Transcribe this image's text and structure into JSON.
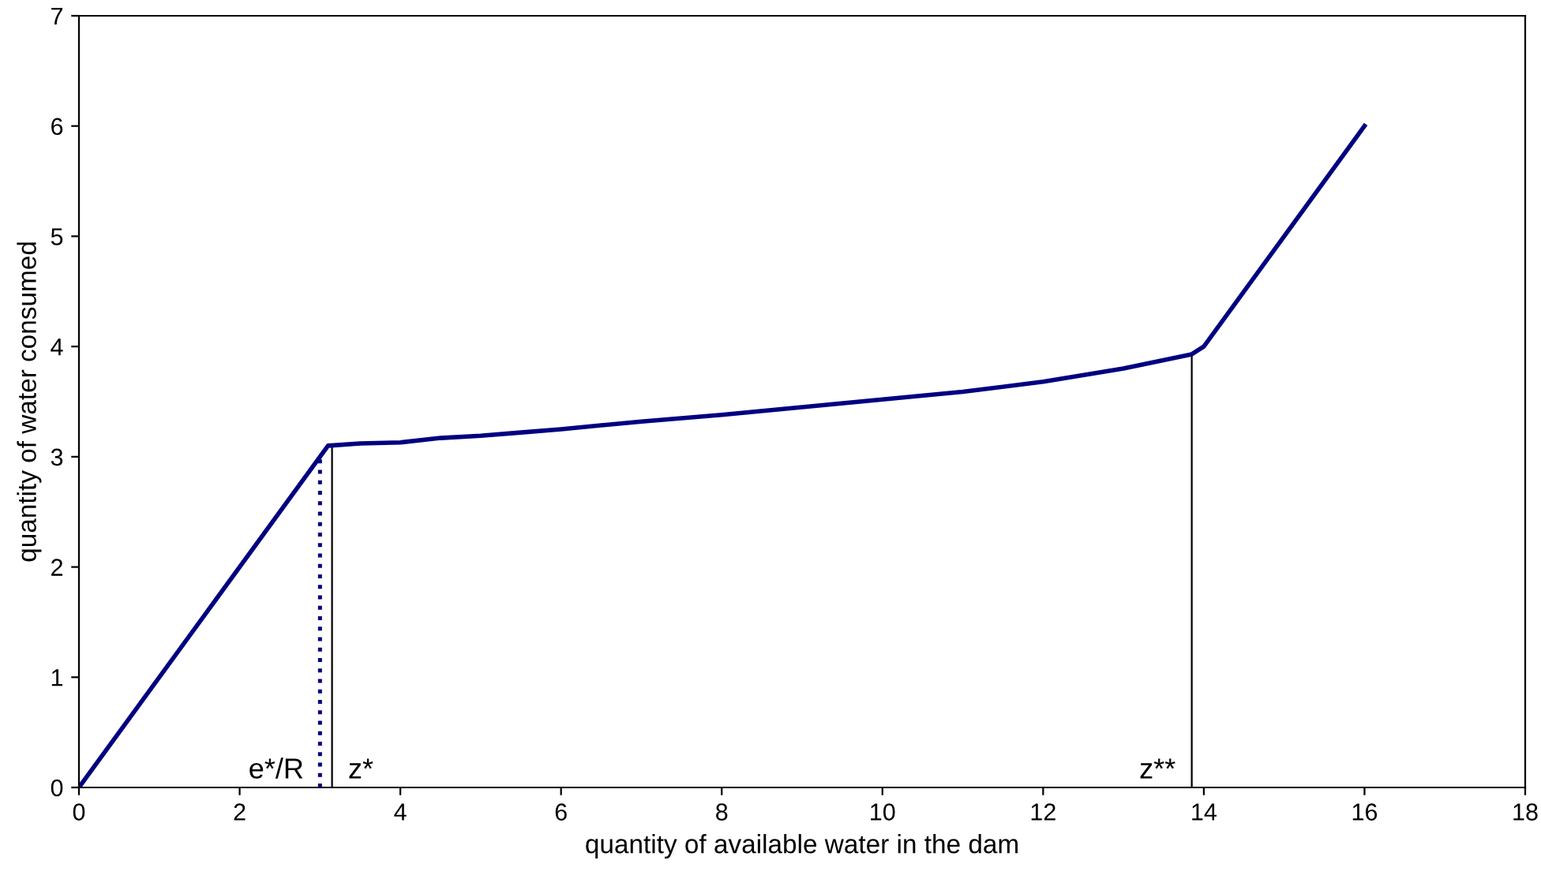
{
  "chart_data": {
    "type": "line",
    "xlabel": "quantity of available water in the dam",
    "ylabel": "quantity of water consumed",
    "x": [
      0,
      3.1,
      3.5,
      4,
      4.5,
      5,
      5.5,
      6,
      7,
      8,
      9,
      10,
      11,
      12,
      13,
      13.85,
      14,
      16
    ],
    "series": [
      {
        "color": "#000080",
        "values": [
          0,
          3.1,
          3.12,
          3.13,
          3.17,
          3.19,
          3.22,
          3.25,
          3.32,
          3.38,
          3.45,
          3.52,
          3.59,
          3.68,
          3.8,
          3.93,
          4.0,
          6.0
        ]
      }
    ],
    "xlim": [
      0,
      18
    ],
    "xticks": [
      0,
      2,
      4,
      6,
      8,
      10,
      12,
      14,
      16,
      18
    ],
    "ylim": [
      0,
      7
    ],
    "yticks": [
      0,
      1,
      2,
      3,
      4,
      5,
      6,
      7
    ],
    "ref_lines": [
      {
        "axis": "x",
        "value": 3.0,
        "label": "e*/R",
        "color": "#000080",
        "line_style": "dotted"
      },
      {
        "axis": "x",
        "value": 3.15,
        "label": "z*",
        "color": "#000000",
        "line_style": "solid"
      },
      {
        "axis": "x",
        "value": 13.85,
        "label": "z**",
        "color": "#000000",
        "line_style": "solid"
      }
    ],
    "grid": false,
    "legend": false
  }
}
